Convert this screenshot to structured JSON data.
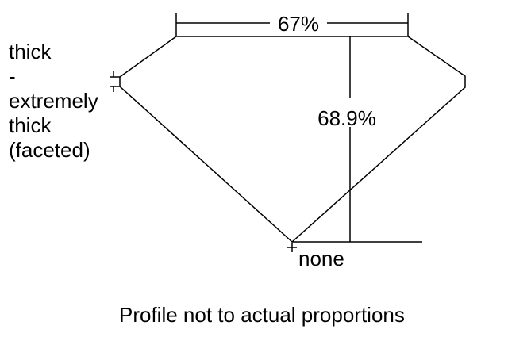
{
  "girdle_label": [
    "thick",
    "-",
    "extremely",
    "thick",
    "(faceted)"
  ],
  "table_percent": "67%",
  "depth_percent": "68.9%",
  "culet_label": "none",
  "caption": "Profile not to actual proportions",
  "colors": {
    "line": "#000000",
    "background": "#ffffff"
  }
}
